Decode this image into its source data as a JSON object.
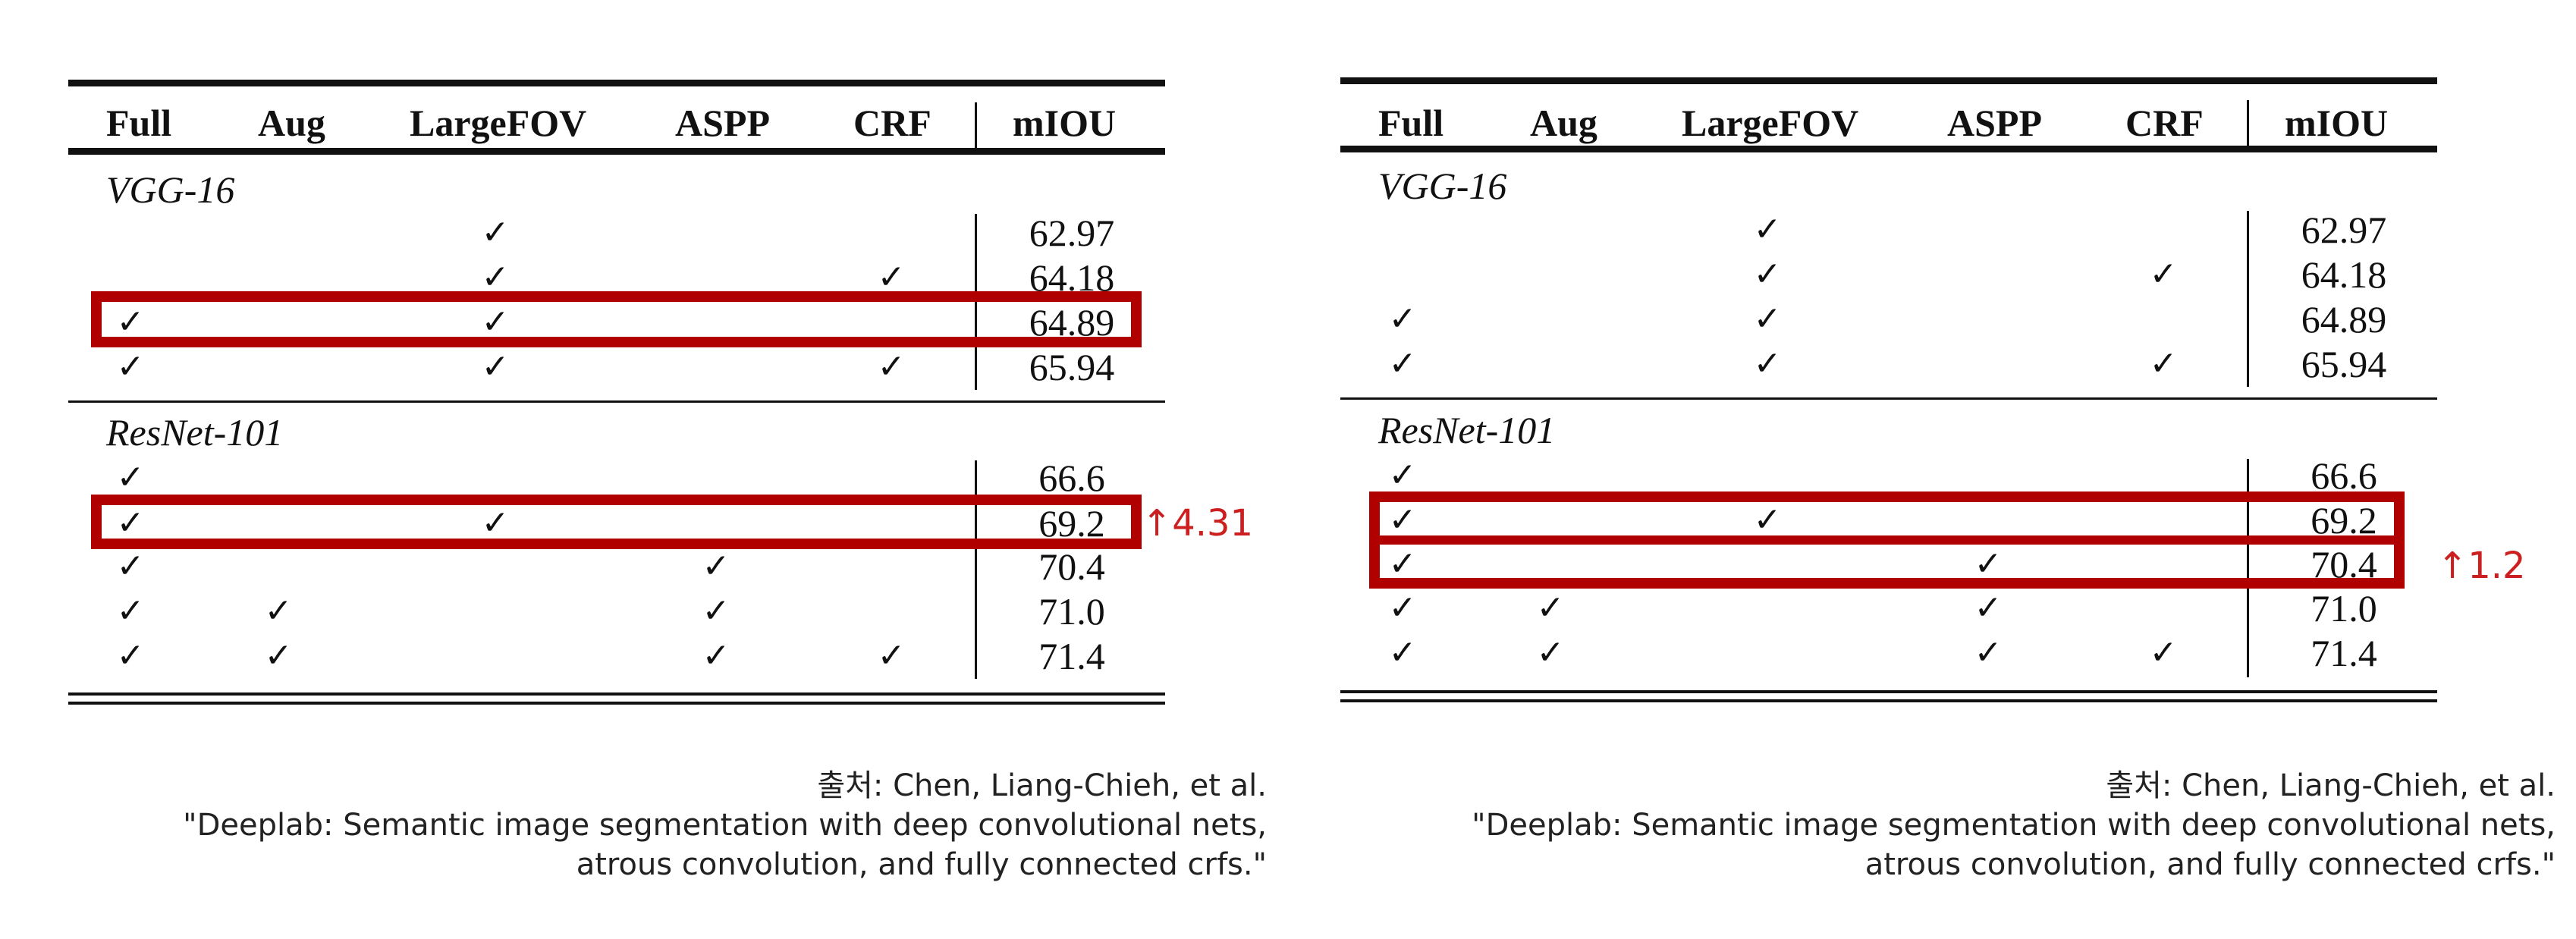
{
  "columns": [
    "Full",
    "Aug",
    "LargeFOV",
    "ASPP",
    "CRF",
    "mIOU"
  ],
  "check_glyph": "✓",
  "sections": [
    {
      "name": "VGG-16",
      "rows": [
        {
          "full": false,
          "aug": false,
          "largefov": true,
          "aspp": false,
          "crf": false,
          "miou": "62.97"
        },
        {
          "full": false,
          "aug": false,
          "largefov": true,
          "aspp": false,
          "crf": true,
          "miou": "64.18"
        },
        {
          "full": true,
          "aug": false,
          "largefov": true,
          "aspp": false,
          "crf": false,
          "miou": "64.89"
        },
        {
          "full": true,
          "aug": false,
          "largefov": true,
          "aspp": false,
          "crf": true,
          "miou": "65.94"
        }
      ]
    },
    {
      "name": "ResNet-101",
      "rows": [
        {
          "full": true,
          "aug": false,
          "largefov": false,
          "aspp": false,
          "crf": false,
          "miou": "66.6"
        },
        {
          "full": true,
          "aug": false,
          "largefov": true,
          "aspp": false,
          "crf": false,
          "miou": "69.2"
        },
        {
          "full": true,
          "aug": false,
          "largefov": false,
          "aspp": true,
          "crf": false,
          "miou": "70.4"
        },
        {
          "full": true,
          "aug": true,
          "largefov": false,
          "aspp": true,
          "crf": false,
          "miou": "71.0"
        },
        {
          "full": true,
          "aug": true,
          "largefov": false,
          "aspp": true,
          "crf": true,
          "miou": "71.4"
        }
      ]
    }
  ],
  "left_panel": {
    "annotation": "↑4.31"
  },
  "right_panel": {
    "annotation": "↑1.2"
  },
  "citation": {
    "line1": "출처: Chen, Liang-Chieh, et al.",
    "line2": "\"Deeplab: Semantic image segmentation with deep convolutional nets,",
    "line3": "atrous convolution, and fully connected crfs.\""
  },
  "colors": {
    "highlight": "#b00000",
    "annotation": "#cc1f1f",
    "ink": "#111111"
  }
}
